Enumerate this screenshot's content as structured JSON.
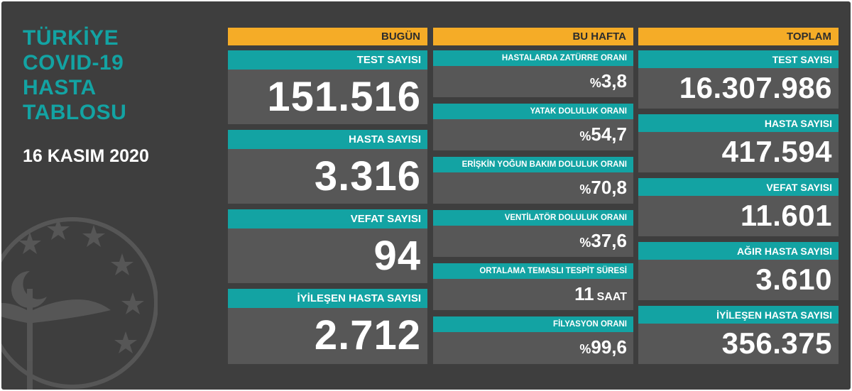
{
  "header": {
    "title_lines": [
      "TÜRKİYE",
      "COVID-19",
      "HASTA",
      "TABLOSU"
    ],
    "date": "16 KASIM 2020"
  },
  "today": {
    "heading": "BUGÜN",
    "cards": [
      {
        "label": "TEST SAYISI",
        "value": "151.516"
      },
      {
        "label": "HASTA SAYISI",
        "value": "3.316"
      },
      {
        "label": "VEFAT SAYISI",
        "value": "94"
      },
      {
        "label": "İYİLEŞEN HASTA SAYISI",
        "value": "2.712"
      }
    ]
  },
  "week": {
    "heading": "BU HAFTA",
    "cards": [
      {
        "label": "HASTALARDA ZATÜRRE ORANI",
        "prefix": "%",
        "value": "3,8",
        "unit": ""
      },
      {
        "label": "YATAK DOLULUK ORANI",
        "prefix": "%",
        "value": "54,7",
        "unit": ""
      },
      {
        "label": "ERİŞKİN YOĞUN BAKIM DOLULUK ORANI",
        "prefix": "%",
        "value": "70,8",
        "unit": ""
      },
      {
        "label": "VENTİLATÖR DOLULUK ORANI",
        "prefix": "%",
        "value": "37,6",
        "unit": ""
      },
      {
        "label": "ORTALAMA TEMASLI TESPİT SÜRESİ",
        "prefix": "",
        "value": "11",
        "unit": "SAAT"
      },
      {
        "label": "FİLYASYON ORANI",
        "prefix": "%",
        "value": "99,6",
        "unit": ""
      }
    ]
  },
  "total": {
    "heading": "TOPLAM",
    "cards": [
      {
        "label": "TEST SAYISI",
        "value": "16.307.986"
      },
      {
        "label": "HASTA SAYISI",
        "value": "417.594"
      },
      {
        "label": "VEFAT SAYISI",
        "value": "11.601"
      },
      {
        "label": "AĞIR HASTA SAYISI",
        "value": "3.610"
      },
      {
        "label": "İYİLEŞEN HASTA SAYISI",
        "value": "356.375"
      }
    ]
  },
  "colors": {
    "background": "#3e3e3e",
    "card": "#575757",
    "teal": "#13a3a3",
    "orange": "#f5ac27"
  },
  "icons": {
    "emblem": "health-ministry-emblem-icon"
  }
}
